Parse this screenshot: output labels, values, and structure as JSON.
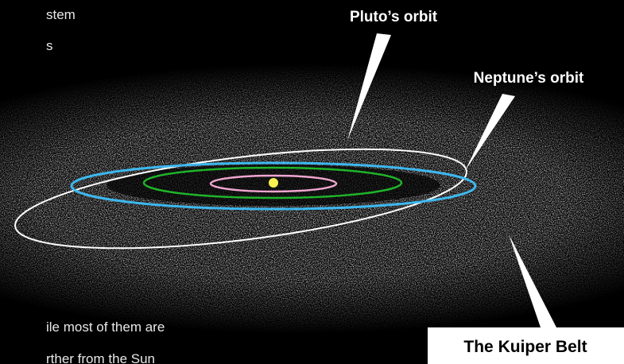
{
  "text_top": [
    "stem",
    "s"
  ],
  "labels": {
    "pluto": "Pluto’s orbit",
    "neptune": "Neptune’s orbit",
    "kuiper": "The Kuiper Belt"
  },
  "text_bottom": [
    "ile most of them are",
    "rther from the Sun"
  ]
}
